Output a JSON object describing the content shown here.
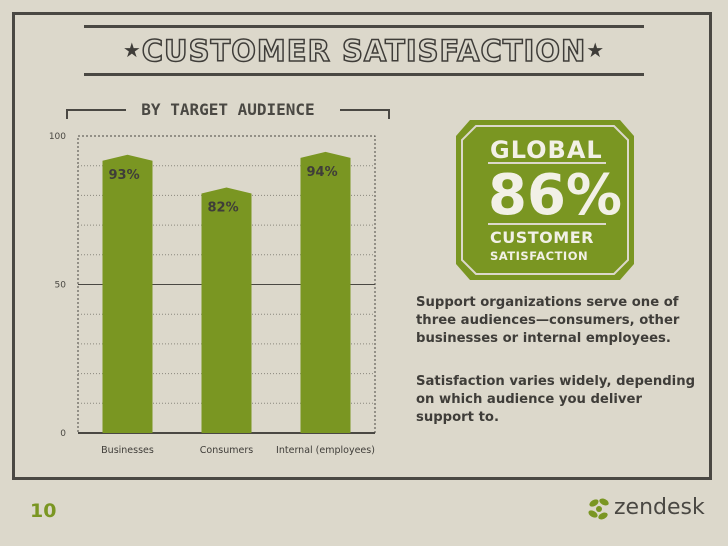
{
  "header": {
    "title": "CUSTOMER SATISFACTION",
    "subtitle": "BY TARGET AUDIENCE"
  },
  "chart_data": {
    "type": "bar",
    "title": "",
    "xlabel": "",
    "ylabel": "",
    "categories": [
      "Businesses",
      "Consumers",
      "Internal (employees)"
    ],
    "values": [
      93,
      82,
      94
    ],
    "value_labels": [
      "93%",
      "82%",
      "94%"
    ],
    "yticks": [
      "0",
      "50",
      "100"
    ],
    "ylim": [
      0,
      100
    ],
    "grid": true,
    "bar_color": "#7a9622"
  },
  "badge": {
    "word": "GLOBAL",
    "value": "86%",
    "line1": "CUSTOMER",
    "line2": "SATISFACTION",
    "color": "#7a9622"
  },
  "body_text": {
    "p1": "Support organizations serve one of three audiences—consumers, other businesses or internal employees.",
    "p2": "Satisfaction varies widely, depending on which audience you deliver support to."
  },
  "footer": {
    "page_number": "10",
    "brand": "zendesk",
    "brand_icon": "zendesk-leaf-icon"
  }
}
